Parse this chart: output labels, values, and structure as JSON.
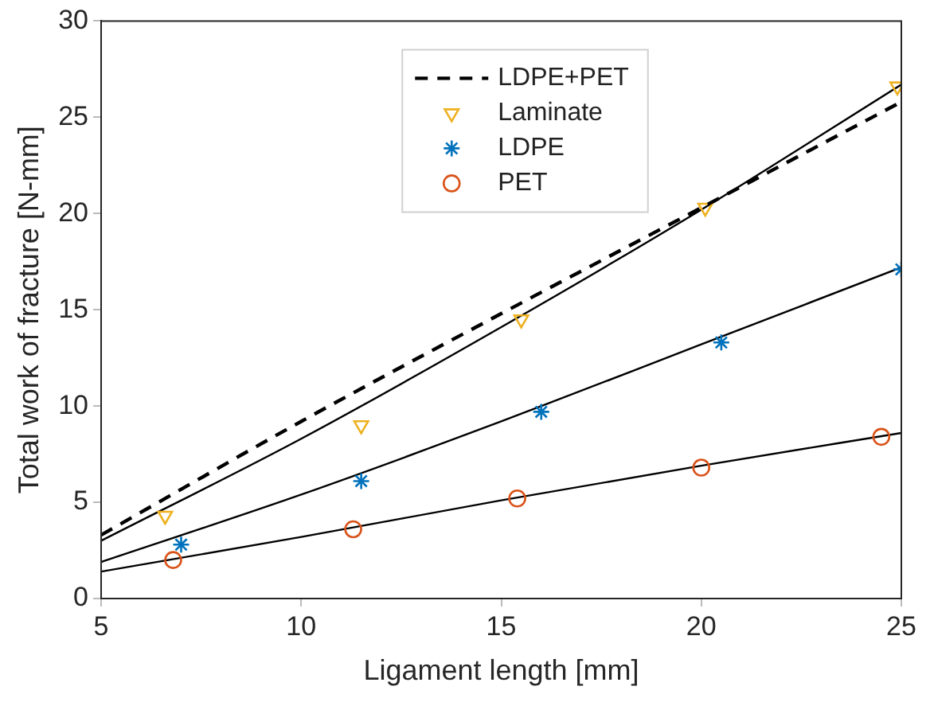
{
  "chart_data": {
    "type": "line",
    "xlabel": "Ligament length [mm]",
    "ylabel": "Total work of fracture [N-mm]",
    "xlim": [
      5,
      25
    ],
    "xticks": [
      5,
      10,
      15,
      20,
      25
    ],
    "ylim": [
      0,
      30
    ],
    "yticks": [
      0,
      5,
      10,
      15,
      20,
      25,
      30
    ],
    "grid": false,
    "legend": "top",
    "series": [
      {
        "name": "LDPE+PET",
        "type": "line",
        "color": "#000000",
        "line_style": "dashed",
        "marker": "none",
        "x": [
          5,
          10,
          15,
          20,
          25
        ],
        "values": [
          3.3,
          9.2,
          14.8,
          20.3,
          25.8
        ]
      },
      {
        "name": "Laminate",
        "type": "scatter",
        "color": "#edb120",
        "marker": "triangle",
        "x": [
          6.6,
          11.5,
          15.5,
          20.1,
          24.9
        ],
        "values": [
          4.3,
          9.0,
          14.5,
          20.3,
          26.6
        ]
      },
      {
        "name": "LDPE",
        "type": "scatter",
        "color": "#0072bd",
        "marker": "cross",
        "x": [
          7.0,
          11.5,
          16.0,
          20.5,
          25.0
        ],
        "values": [
          2.8,
          6.1,
          9.7,
          13.3,
          17.1
        ]
      },
      {
        "name": "PET",
        "type": "scatter",
        "color": "#d95319",
        "marker": "circle",
        "x": [
          6.8,
          11.3,
          15.4,
          20.0,
          24.5
        ],
        "values": [
          2.0,
          3.6,
          5.2,
          6.8,
          8.4
        ]
      },
      {
        "type": "line",
        "color": "#000000",
        "line_style": "solid",
        "marker": "none",
        "x": [
          5,
          10,
          15,
          20,
          25
        ],
        "values": [
          3.0,
          8.3,
          14.1,
          20.2,
          26.7
        ]
      },
      {
        "type": "line",
        "color": "#000000",
        "line_style": "solid",
        "marker": "none",
        "x": [
          5,
          10,
          15,
          20,
          25
        ],
        "values": [
          1.9,
          5.4,
          9.2,
          13.2,
          17.2
        ]
      },
      {
        "type": "line",
        "color": "#000000",
        "line_style": "solid",
        "marker": "none",
        "x": [
          5,
          10,
          15,
          20,
          25
        ],
        "values": [
          1.4,
          3.2,
          5.1,
          6.9,
          8.6
        ]
      }
    ]
  }
}
